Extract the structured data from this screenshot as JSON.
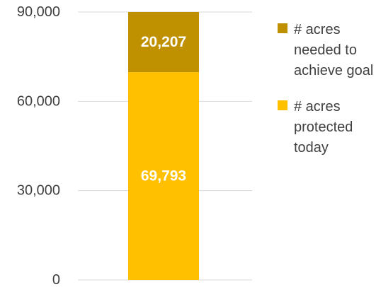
{
  "chart_data": {
    "type": "bar",
    "stacked": true,
    "categories": [
      ""
    ],
    "series": [
      {
        "name": "# acres protected today",
        "values": [
          69793
        ],
        "color": "#FFC000",
        "label": "69,793"
      },
      {
        "name": "# acres needed to achieve goal",
        "values": [
          20207
        ],
        "color": "#BF9000",
        "label": "20,207"
      }
    ],
    "ylim": [
      0,
      90000
    ],
    "y_ticks": [
      0,
      30000,
      60000,
      90000
    ],
    "y_tick_labels": [
      "0",
      "30,000",
      "60,000",
      "90,000"
    ],
    "grid": true,
    "legend": {
      "placement": "right",
      "items": [
        {
          "label": "# acres needed to achieve goal",
          "color": "#BF9000"
        },
        {
          "label": "# acres protected today",
          "color": "#FFC000"
        }
      ]
    }
  }
}
